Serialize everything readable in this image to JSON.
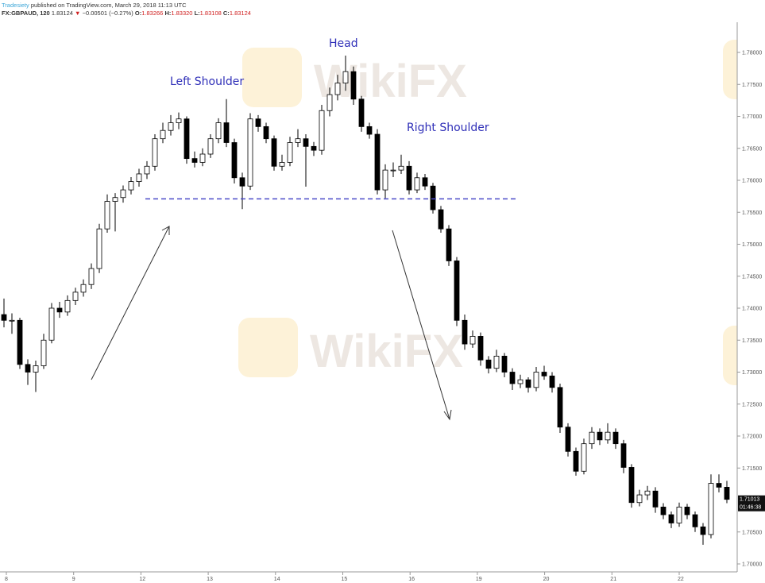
{
  "header": {
    "user": "Tradesiety",
    "published": "published on TradingView.com, March 29, 2018 11:13 UTC",
    "symbol": "FX:GBPAUD, 120",
    "last": "1.83124",
    "change_arrow": "▼",
    "change": "−0.00501 (−0.27%)",
    "o_label": "O:",
    "o": "1.83266",
    "h_label": "H:",
    "h": "1.83320",
    "l_label": "L:",
    "l": "1.83108",
    "c_label": "C:",
    "c": "1.83124"
  },
  "watermark": "WikiFX",
  "colors": {
    "up_body": "#ffffff",
    "down_body": "#000000",
    "outline": "#000000",
    "annotation": "#2f2fb8",
    "neckline": "#4a4ac8",
    "red": "#d02020"
  },
  "chart_data": {
    "type": "candlestick",
    "title": "",
    "x_tick_labels": [
      "8",
      "9",
      "12",
      "13",
      "14",
      "15",
      "16",
      "19",
      "20",
      "21",
      "22"
    ],
    "y_tick_labels": [
      "1.78000",
      "1.77500",
      "1.77000",
      "1.76500",
      "1.76000",
      "1.75500",
      "1.75000",
      "1.74500",
      "1.74000",
      "1.73500",
      "1.73000",
      "1.72500",
      "1.72000",
      "1.71500",
      "1.70500",
      "1.70000"
    ],
    "y_ticks": [
      1.78,
      1.775,
      1.77,
      1.765,
      1.76,
      1.755,
      1.75,
      1.745,
      1.74,
      1.735,
      1.73,
      1.725,
      1.72,
      1.715,
      1.705,
      1.7
    ],
    "ylim": [
      1.699,
      1.7845
    ],
    "grid": false,
    "last_price_label": "1.71013",
    "last_price": 1.7101,
    "countdown_label": "01:46:38",
    "neckline_price": 1.7571,
    "annotations": {
      "head": "Head",
      "left_shoulder": "Left Shoulder",
      "right_shoulder": "Right Shoulder"
    },
    "ohlc": [
      [
        1.739,
        1.7415,
        1.737,
        1.7381
      ],
      [
        1.7381,
        1.7392,
        1.736,
        1.7381
      ],
      [
        1.7381,
        1.7385,
        1.7305,
        1.7312
      ],
      [
        1.7312,
        1.732,
        1.728,
        1.73
      ],
      [
        1.73,
        1.7318,
        1.7269,
        1.731
      ],
      [
        1.731,
        1.736,
        1.7305,
        1.735
      ],
      [
        1.735,
        1.7408,
        1.7345,
        1.74
      ],
      [
        1.74,
        1.741,
        1.7385,
        1.7394
      ],
      [
        1.7394,
        1.742,
        1.7388,
        1.7412
      ],
      [
        1.7412,
        1.7432,
        1.7405,
        1.7425
      ],
      [
        1.7425,
        1.7445,
        1.7418,
        1.7437
      ],
      [
        1.7437,
        1.747,
        1.743,
        1.7462
      ],
      [
        1.7462,
        1.7532,
        1.7455,
        1.7524
      ],
      [
        1.7524,
        1.7578,
        1.7518,
        1.7567
      ],
      [
        1.7567,
        1.758,
        1.752,
        1.7573
      ],
      [
        1.7573,
        1.7592,
        1.7565,
        1.7585
      ],
      [
        1.7585,
        1.7605,
        1.7578,
        1.7598
      ],
      [
        1.7598,
        1.7618,
        1.759,
        1.761
      ],
      [
        1.761,
        1.763,
        1.7602,
        1.7622
      ],
      [
        1.7622,
        1.7672,
        1.7615,
        1.7665
      ],
      [
        1.7665,
        1.769,
        1.7658,
        1.7678
      ],
      [
        1.7678,
        1.7702,
        1.767,
        1.769
      ],
      [
        1.769,
        1.7706,
        1.768,
        1.7696
      ],
      [
        1.7696,
        1.77,
        1.7626,
        1.7634
      ],
      [
        1.7634,
        1.7645,
        1.762,
        1.7628
      ],
      [
        1.7628,
        1.765,
        1.7622,
        1.7641
      ],
      [
        1.7641,
        1.7672,
        1.7635,
        1.7665
      ],
      [
        1.7665,
        1.7697,
        1.7658,
        1.769
      ],
      [
        1.769,
        1.7727,
        1.7652,
        1.7659
      ],
      [
        1.7659,
        1.7665,
        1.7595,
        1.7604
      ],
      [
        1.7604,
        1.7612,
        1.7555,
        1.7591
      ],
      [
        1.7591,
        1.7705,
        1.7585,
        1.7696
      ],
      [
        1.7696,
        1.7702,
        1.7676,
        1.7684
      ],
      [
        1.7684,
        1.769,
        1.7658,
        1.7665
      ],
      [
        1.7665,
        1.767,
        1.7615,
        1.7622
      ],
      [
        1.7622,
        1.764,
        1.7615,
        1.7628
      ],
      [
        1.7628,
        1.7668,
        1.7622,
        1.7659
      ],
      [
        1.7659,
        1.768,
        1.7652,
        1.7665
      ],
      [
        1.7665,
        1.7672,
        1.759,
        1.7653
      ],
      [
        1.7653,
        1.766,
        1.7638,
        1.7647
      ],
      [
        1.7647,
        1.7718,
        1.764,
        1.7709
      ],
      [
        1.7709,
        1.7745,
        1.77,
        1.7734
      ],
      [
        1.7734,
        1.7765,
        1.7725,
        1.7752
      ],
      [
        1.7752,
        1.7795,
        1.774,
        1.777
      ],
      [
        1.777,
        1.7778,
        1.7718,
        1.7727
      ],
      [
        1.7727,
        1.7732,
        1.7676,
        1.7684
      ],
      [
        1.7684,
        1.769,
        1.7665,
        1.7672
      ],
      [
        1.7672,
        1.768,
        1.7578,
        1.7585
      ],
      [
        1.7585,
        1.7625,
        1.7572,
        1.7616
      ],
      [
        1.7616,
        1.7628,
        1.7605,
        1.7616
      ],
      [
        1.7616,
        1.764,
        1.761,
        1.7622
      ],
      [
        1.7622,
        1.763,
        1.7578,
        1.7585
      ],
      [
        1.7585,
        1.7612,
        1.758,
        1.7604
      ],
      [
        1.7604,
        1.761,
        1.7585,
        1.7591
      ],
      [
        1.7591,
        1.7596,
        1.7548,
        1.7554
      ],
      [
        1.7554,
        1.756,
        1.7518,
        1.7524
      ],
      [
        1.7524,
        1.753,
        1.7466,
        1.7474
      ],
      [
        1.7474,
        1.748,
        1.7372,
        1.7381
      ],
      [
        1.7381,
        1.739,
        1.7335,
        1.7344
      ],
      [
        1.7344,
        1.7365,
        1.7338,
        1.7356
      ],
      [
        1.7356,
        1.7362,
        1.731,
        1.7319
      ],
      [
        1.7319,
        1.7325,
        1.7298,
        1.7306
      ],
      [
        1.7306,
        1.7335,
        1.73,
        1.7325
      ],
      [
        1.7325,
        1.733,
        1.7292,
        1.73
      ],
      [
        1.73,
        1.7306,
        1.7272,
        1.7282
      ],
      [
        1.7282,
        1.7296,
        1.7275,
        1.7288
      ],
      [
        1.7288,
        1.7292,
        1.7268,
        1.7276
      ],
      [
        1.7276,
        1.7308,
        1.727,
        1.73
      ],
      [
        1.73,
        1.731,
        1.7288,
        1.7294
      ],
      [
        1.7294,
        1.73,
        1.7268,
        1.7276
      ],
      [
        1.7276,
        1.7282,
        1.7205,
        1.7214
      ],
      [
        1.7214,
        1.722,
        1.7168,
        1.7176
      ],
      [
        1.7176,
        1.7182,
        1.7138,
        1.7145
      ],
      [
        1.7145,
        1.7196,
        1.714,
        1.7188
      ],
      [
        1.7188,
        1.7214,
        1.718,
        1.7206
      ],
      [
        1.7206,
        1.7212,
        1.7186,
        1.7194
      ],
      [
        1.7194,
        1.722,
        1.7188,
        1.7206
      ],
      [
        1.7206,
        1.7212,
        1.718,
        1.7188
      ],
      [
        1.7188,
        1.7194,
        1.7142,
        1.7151
      ],
      [
        1.7151,
        1.7156,
        1.7088,
        1.7096
      ],
      [
        1.7096,
        1.7116,
        1.709,
        1.7108
      ],
      [
        1.7108,
        1.7122,
        1.71,
        1.7114
      ],
      [
        1.7114,
        1.712,
        1.708,
        1.7089
      ],
      [
        1.7089,
        1.7095,
        1.707,
        1.7077
      ],
      [
        1.7077,
        1.7082,
        1.7056,
        1.7064
      ],
      [
        1.7064,
        1.7096,
        1.7058,
        1.7089
      ],
      [
        1.7089,
        1.7094,
        1.707,
        1.7077
      ],
      [
        1.7077,
        1.7082,
        1.705,
        1.7058
      ],
      [
        1.7058,
        1.7064,
        1.703,
        1.7046
      ],
      [
        1.7046,
        1.714,
        1.704,
        1.7126
      ],
      [
        1.7126,
        1.714,
        1.7112,
        1.712
      ],
      [
        1.712,
        1.713,
        1.7095,
        1.7101
      ]
    ]
  }
}
